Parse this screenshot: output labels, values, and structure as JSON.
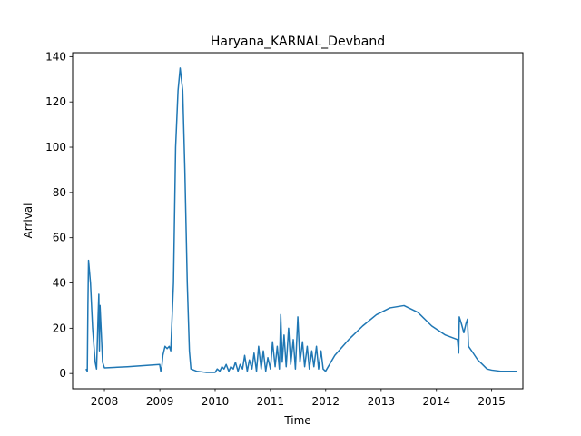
{
  "chart_data": {
    "type": "line",
    "title": "Haryana_KARNAL_Devband",
    "xlabel": "Time",
    "ylabel": "Arrival",
    "xlim": [
      "2007-06-05",
      "2015-07-26"
    ],
    "ylim": [
      -6.75,
      141.75
    ],
    "x_ticks": [
      "2008",
      "2009",
      "2010",
      "2011",
      "2012",
      "2013",
      "2014",
      "2015"
    ],
    "y_ticks": [
      0,
      20,
      40,
      60,
      80,
      100,
      120,
      140
    ],
    "grid": false,
    "legend": "none",
    "color": "#1f77b4",
    "series": [
      {
        "points": [
          [
            "2007-09-01",
            2
          ],
          [
            "2007-09-10",
            1
          ],
          [
            "2007-09-14",
            30
          ],
          [
            "2007-09-18",
            50
          ],
          [
            "2007-10-01",
            40
          ],
          [
            "2007-10-15",
            20
          ],
          [
            "2007-11-01",
            5
          ],
          [
            "2007-11-10",
            2
          ],
          [
            "2007-11-20",
            25
          ],
          [
            "2007-11-25",
            35
          ],
          [
            "2007-11-29",
            10
          ],
          [
            "2007-12-03",
            30
          ],
          [
            "2007-12-10",
            20
          ],
          [
            "2007-12-20",
            5
          ],
          [
            "2008-01-01",
            2.5
          ],
          [
            "2008-06-01",
            3
          ],
          [
            "2008-12-31",
            4
          ],
          [
            "2009-01-07",
            1
          ],
          [
            "2009-01-14",
            3
          ],
          [
            "2009-01-21",
            8
          ],
          [
            "2009-02-04",
            12
          ],
          [
            "2009-02-18",
            11
          ],
          [
            "2009-03-04",
            12
          ],
          [
            "2009-03-14",
            10
          ],
          [
            "2009-04-01",
            40
          ],
          [
            "2009-04-15",
            100
          ],
          [
            "2009-05-01",
            125
          ],
          [
            "2009-05-15",
            135
          ],
          [
            "2009-06-01",
            125
          ],
          [
            "2009-06-15",
            90
          ],
          [
            "2009-07-01",
            40
          ],
          [
            "2009-07-15",
            10
          ],
          [
            "2009-07-25",
            2
          ],
          [
            "2009-09-01",
            1
          ],
          [
            "2009-11-01",
            0.5
          ],
          [
            "2010-01-01",
            0.5
          ],
          [
            "2010-01-15",
            2
          ],
          [
            "2010-02-01",
            1
          ],
          [
            "2010-02-15",
            3
          ],
          [
            "2010-03-01",
            2
          ],
          [
            "2010-03-15",
            4
          ],
          [
            "2010-04-01",
            1
          ],
          [
            "2010-04-15",
            3
          ],
          [
            "2010-05-01",
            2
          ],
          [
            "2010-05-15",
            5
          ],
          [
            "2010-06-01",
            1
          ],
          [
            "2010-06-15",
            4
          ],
          [
            "2010-07-01",
            2
          ],
          [
            "2010-07-15",
            8
          ],
          [
            "2010-08-01",
            1
          ],
          [
            "2010-08-15",
            6
          ],
          [
            "2010-09-01",
            2
          ],
          [
            "2010-09-15",
            9
          ],
          [
            "2010-10-01",
            1
          ],
          [
            "2010-10-15",
            12
          ],
          [
            "2010-11-01",
            2
          ],
          [
            "2010-11-15",
            10
          ],
          [
            "2010-12-01",
            1
          ],
          [
            "2010-12-15",
            7
          ],
          [
            "2011-01-01",
            2
          ],
          [
            "2011-01-15",
            14
          ],
          [
            "2011-02-01",
            3
          ],
          [
            "2011-02-15",
            12
          ],
          [
            "2011-03-01",
            2
          ],
          [
            "2011-03-10",
            26
          ],
          [
            "2011-03-20",
            5
          ],
          [
            "2011-04-01",
            17
          ],
          [
            "2011-04-15",
            3
          ],
          [
            "2011-05-01",
            20
          ],
          [
            "2011-05-15",
            4
          ],
          [
            "2011-06-01",
            15
          ],
          [
            "2011-06-15",
            2
          ],
          [
            "2011-07-01",
            25
          ],
          [
            "2011-07-15",
            5
          ],
          [
            "2011-08-01",
            14
          ],
          [
            "2011-08-15",
            3
          ],
          [
            "2011-09-01",
            12
          ],
          [
            "2011-09-15",
            2
          ],
          [
            "2011-10-01",
            10
          ],
          [
            "2011-10-15",
            3
          ],
          [
            "2011-11-01",
            12
          ],
          [
            "2011-11-15",
            2
          ],
          [
            "2011-12-01",
            10
          ],
          [
            "2011-12-15",
            2
          ],
          [
            "2011-12-31",
            1
          ],
          [
            "2012-03-01",
            8
          ],
          [
            "2012-06-01",
            15
          ],
          [
            "2012-09-01",
            21
          ],
          [
            "2012-12-01",
            26
          ],
          [
            "2013-03-01",
            29
          ],
          [
            "2013-06-01",
            30
          ],
          [
            "2013-09-01",
            27
          ],
          [
            "2013-12-01",
            21
          ],
          [
            "2014-03-01",
            17
          ],
          [
            "2014-05-20",
            15
          ],
          [
            "2014-05-28",
            9
          ],
          [
            "2014-06-01",
            25
          ],
          [
            "2014-06-15",
            22
          ],
          [
            "2014-07-01",
            18
          ],
          [
            "2014-07-15",
            22
          ],
          [
            "2014-07-25",
            24
          ],
          [
            "2014-08-01",
            12
          ],
          [
            "2014-09-01",
            9
          ],
          [
            "2014-10-01",
            6
          ],
          [
            "2014-11-01",
            4
          ],
          [
            "2014-12-01",
            2
          ],
          [
            "2015-01-01",
            1.5
          ],
          [
            "2015-03-01",
            1
          ],
          [
            "2015-06-15",
            1
          ]
        ]
      }
    ]
  }
}
